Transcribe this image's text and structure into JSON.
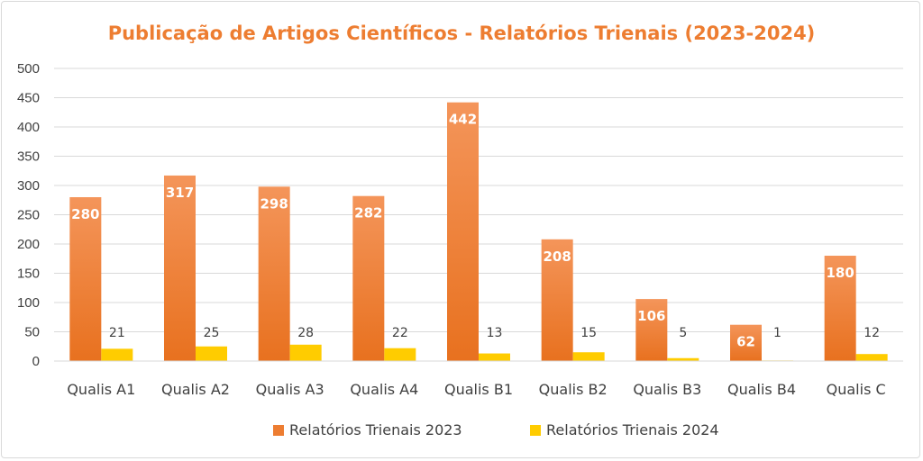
{
  "colors": {
    "series1": "#ed7d31",
    "series2": "#ffcc00",
    "title": "#ed7d31",
    "grid": "#d9d9d9"
  },
  "chart_data": {
    "type": "bar",
    "title": "Publicação de Artigos Científicos - Relatórios Trienais (2023-2024)",
    "categories": [
      "Qualis A1",
      "Qualis A2",
      "Qualis A3",
      "Qualis A4",
      "Qualis B1",
      "Qualis B2",
      "Qualis B3",
      "Qualis B4",
      "Qualis C"
    ],
    "series": [
      {
        "name": "Relatórios Trienais 2023",
        "values": [
          280,
          317,
          298,
          282,
          442,
          208,
          106,
          62,
          180
        ]
      },
      {
        "name": "Relatórios Trienais 2024",
        "values": [
          21,
          25,
          28,
          22,
          13,
          15,
          5,
          1,
          12
        ]
      }
    ],
    "ylim": [
      0,
      500
    ],
    "yticks": [
      0,
      50,
      100,
      150,
      200,
      250,
      300,
      350,
      400,
      450,
      500
    ],
    "grid": true,
    "legend_position": "bottom"
  }
}
